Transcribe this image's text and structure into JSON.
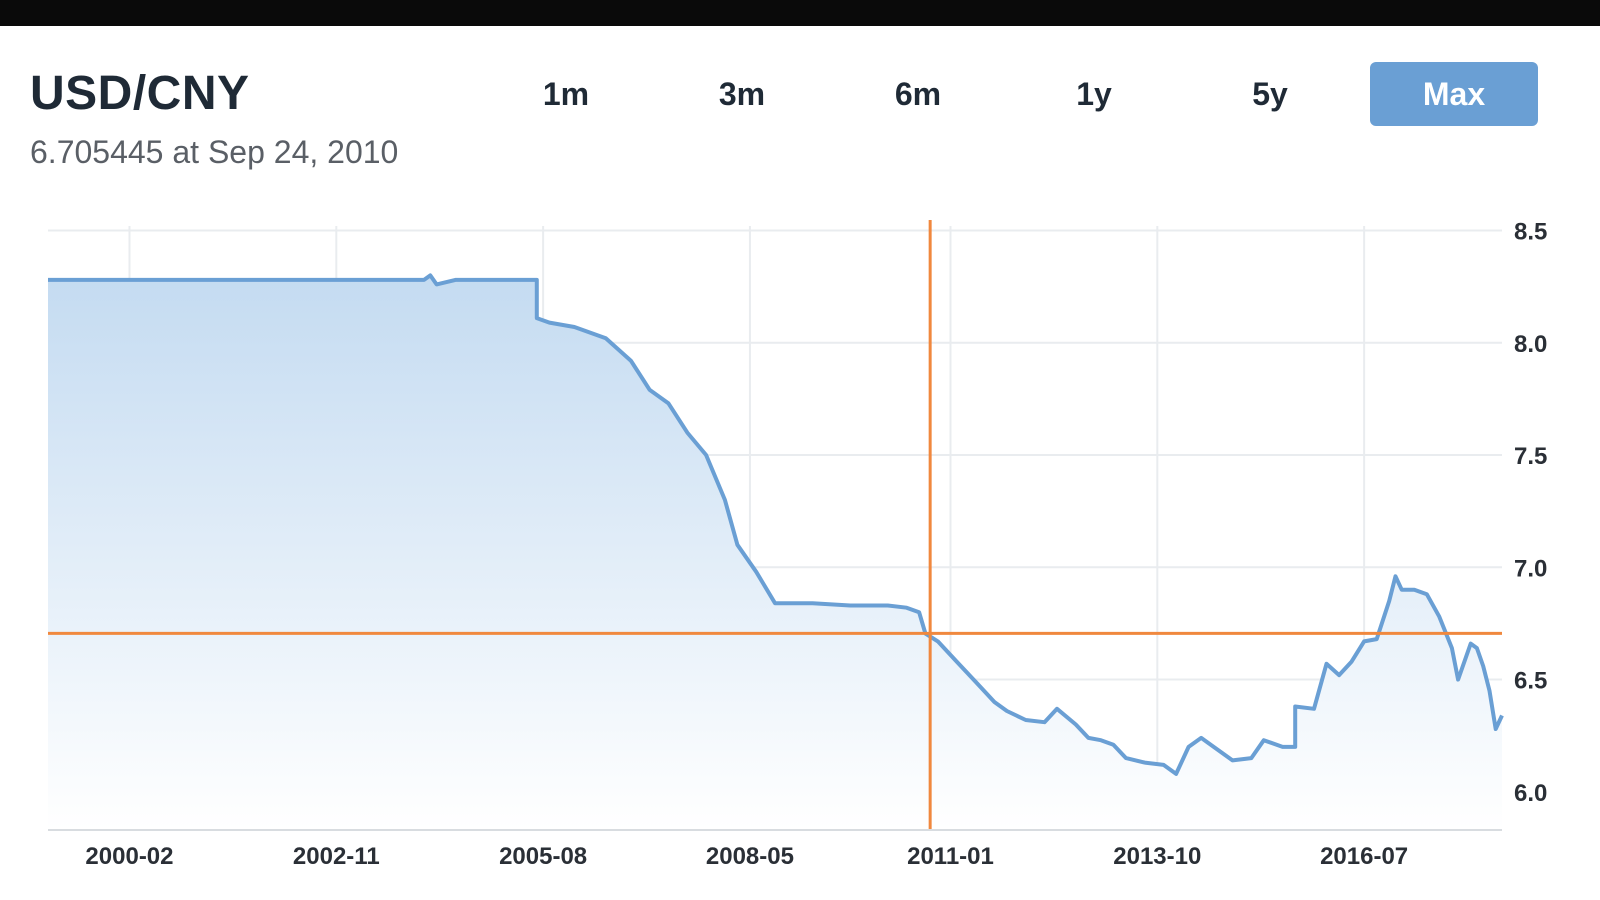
{
  "header": {
    "pair": "USD/CNY",
    "quote_value": "6.705445",
    "quote_sep": " at ",
    "quote_date": "Sep 24, 2010"
  },
  "ranges": [
    {
      "label": "1m",
      "active": false
    },
    {
      "label": "3m",
      "active": false
    },
    {
      "label": "6m",
      "active": false
    },
    {
      "label": "1y",
      "active": false
    },
    {
      "label": "5y",
      "active": false
    },
    {
      "label": "Max",
      "active": true
    }
  ],
  "colors": {
    "line": "#6a9fd4",
    "fill_top": "#c4dbf1",
    "fill_bottom": "#ffffff",
    "crosshair": "#f0883e",
    "grid": "#e9ecef",
    "active_tab": "#6a9fd4"
  },
  "chart_data": {
    "type": "area",
    "title": "",
    "xlabel": "",
    "ylabel": "",
    "xlim": [
      "1999-01",
      "2018-05"
    ],
    "ylim": [
      5.83,
      8.52
    ],
    "x_ticks": [
      "2000-02",
      "2002-11",
      "2005-08",
      "2008-05",
      "2011-01",
      "2013-10",
      "2016-07"
    ],
    "y_ticks": [
      6.0,
      6.5,
      7.0,
      7.5,
      8.0,
      8.5
    ],
    "y_tick_labels": [
      "6.0",
      "6.5",
      "7.0",
      "7.5",
      "8.0",
      "8.5"
    ],
    "grid": true,
    "y_axis_position": "right",
    "crosshair": {
      "x": "2010-09-24",
      "y": 6.705445
    },
    "series": [
      {
        "x": [
          "1999-01",
          "2001-01",
          "2003-01",
          "2004-01",
          "2004-02",
          "2004-03",
          "2004-06",
          "2005-07",
          "2005-07",
          "2005-09",
          "2006-01",
          "2006-06",
          "2006-10",
          "2007-01",
          "2007-04",
          "2007-07",
          "2007-10",
          "2008-01",
          "2008-03",
          "2008-06",
          "2008-09",
          "2009-03",
          "2009-09",
          "2010-03",
          "2010-06",
          "2010-08",
          "2010-09",
          "2010-11",
          "2011-02",
          "2011-05",
          "2011-08",
          "2011-10",
          "2012-01",
          "2012-04",
          "2012-06",
          "2012-09",
          "2012-11",
          "2013-01",
          "2013-03",
          "2013-05",
          "2013-08",
          "2013-11",
          "2014-01",
          "2014-03",
          "2014-05",
          "2014-07",
          "2014-10",
          "2015-01",
          "2015-03",
          "2015-06",
          "2015-08",
          "2015-08",
          "2015-11",
          "2016-01",
          "2016-03",
          "2016-05",
          "2016-07",
          "2016-09",
          "2016-11",
          "2016-12",
          "2017-01",
          "2017-03",
          "2017-05",
          "2017-07",
          "2017-09",
          "2017-10",
          "2017-12",
          "2018-01",
          "2018-02",
          "2018-03",
          "2018-04",
          "2018-05"
        ],
        "values": [
          8.28,
          8.28,
          8.28,
          8.28,
          8.3,
          8.26,
          8.28,
          8.28,
          8.11,
          8.09,
          8.07,
          8.02,
          7.92,
          7.79,
          7.73,
          7.6,
          7.5,
          7.3,
          7.1,
          6.98,
          6.84,
          6.84,
          6.83,
          6.83,
          6.82,
          6.8,
          6.705,
          6.67,
          6.58,
          6.49,
          6.4,
          6.36,
          6.32,
          6.31,
          6.37,
          6.3,
          6.24,
          6.23,
          6.21,
          6.15,
          6.13,
          6.12,
          6.08,
          6.2,
          6.24,
          6.2,
          6.14,
          6.15,
          6.23,
          6.2,
          6.2,
          6.38,
          6.37,
          6.57,
          6.52,
          6.58,
          6.67,
          6.68,
          6.85,
          6.96,
          6.9,
          6.9,
          6.88,
          6.78,
          6.64,
          6.5,
          6.66,
          6.64,
          6.56,
          6.45,
          6.28,
          6.34
        ]
      }
    ]
  }
}
